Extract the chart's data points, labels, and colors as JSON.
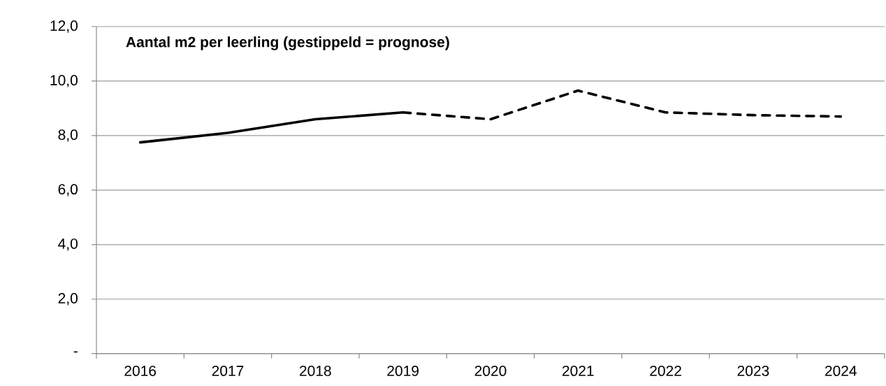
{
  "chart_data": {
    "type": "line",
    "title": "Aantal m2 per leerling (gestippeld = prognose)",
    "categories": [
      "2016",
      "2017",
      "2018",
      "2019",
      "2020",
      "2021",
      "2022",
      "2023",
      "2024"
    ],
    "series": [
      {
        "color": "#000000",
        "line_style": "solid",
        "values": [
          7.75,
          8.1,
          8.6,
          8.85,
          null,
          null,
          null,
          null,
          null
        ]
      },
      {
        "color": "#000000",
        "line_style": "dashed",
        "values": [
          null,
          null,
          null,
          8.85,
          8.6,
          9.65,
          8.85,
          8.75,
          8.7
        ]
      }
    ],
    "ylim": [
      0,
      12
    ],
    "yticks": [
      {
        "value": 0,
        "label": "-"
      },
      {
        "value": 2,
        "label": "2,0"
      },
      {
        "value": 4,
        "label": "4,0"
      },
      {
        "value": 6,
        "label": "6,0"
      },
      {
        "value": 8,
        "label": "8,0"
      },
      {
        "value": 10,
        "label": "10,0"
      },
      {
        "value": 12,
        "label": "12,0"
      }
    ],
    "grid": "y"
  }
}
